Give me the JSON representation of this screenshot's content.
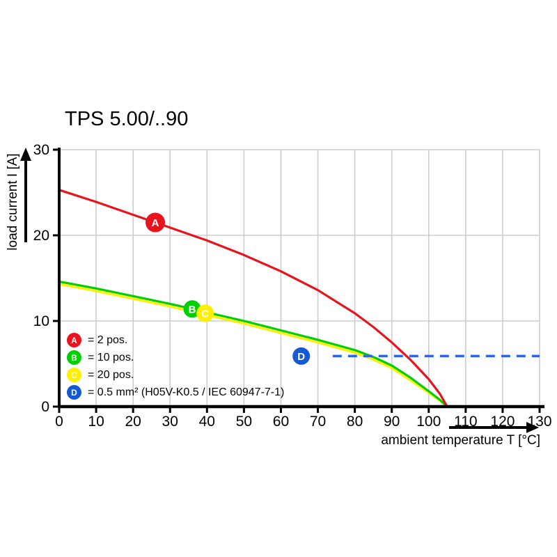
{
  "page": {
    "background": "#ffffff"
  },
  "chart_data": {
    "type": "line",
    "title": "TPS 5.00/..90",
    "xlabel": "ambient temperature T [°C]",
    "ylabel": "load current I [A]",
    "xlim": [
      0,
      130
    ],
    "ylim": [
      0,
      30
    ],
    "x_ticks": [
      0,
      10,
      20,
      30,
      40,
      50,
      60,
      70,
      80,
      90,
      100,
      110,
      120,
      130
    ],
    "y_ticks": [
      0,
      10,
      20,
      30
    ],
    "grid": true,
    "grid_color": "#cdcdcd",
    "axis_color": "#000000",
    "legend_position": "bottom-left inside plot",
    "series": [
      {
        "name": "C = 20 pos.",
        "color": "#ffef00",
        "style": "solid",
        "x": [
          0,
          10,
          20,
          30,
          40,
          50,
          60,
          70,
          80,
          85,
          90,
          95,
          100,
          103,
          105
        ],
        "y": [
          14.3,
          13.5,
          12.6,
          11.7,
          10.7,
          9.7,
          8.6,
          7.5,
          6.3,
          5.5,
          4.5,
          3.1,
          1.6,
          0.7,
          0
        ]
      },
      {
        "name": "B = 10 pos.",
        "color": "#00cf00",
        "style": "solid",
        "x": [
          0,
          10,
          20,
          30,
          40,
          50,
          60,
          70,
          80,
          85,
          90,
          95,
          100,
          103,
          105
        ],
        "y": [
          14.6,
          13.8,
          12.9,
          12.0,
          11.0,
          10.0,
          8.9,
          7.8,
          6.6,
          5.8,
          4.8,
          3.4,
          1.8,
          0.8,
          0
        ]
      },
      {
        "name": "A = 2 pos.",
        "color": "#e8131d",
        "style": "solid",
        "x": [
          0,
          10,
          20,
          30,
          40,
          50,
          60,
          70,
          80,
          85,
          90,
          95,
          100,
          103,
          105
        ],
        "y": [
          25.3,
          23.9,
          22.4,
          20.9,
          19.4,
          17.7,
          15.8,
          13.6,
          10.9,
          9.3,
          7.5,
          5.5,
          3.2,
          1.5,
          0
        ]
      },
      {
        "name": "D = 0.5 mm² limit",
        "color": "#2e64e5",
        "style": "dashed",
        "x": [
          74,
          130
        ],
        "y": [
          5.9,
          5.9
        ]
      }
    ],
    "markers": [
      {
        "letter": "B",
        "color": "#00cf00",
        "text_color": "#ffffff",
        "t": 36,
        "i": 11.4
      },
      {
        "letter": "C",
        "color": "#ffef00",
        "text_color": "#ffffff",
        "t": 39.5,
        "i": 10.9
      },
      {
        "letter": "A",
        "color": "#e8131d",
        "text_color": "#ffffff",
        "t": 26,
        "i": 21.5
      },
      {
        "letter": "D",
        "color": "#1659d6",
        "text_color": "#ffffff",
        "t": 65.5,
        "i": 5.9
      }
    ],
    "legend": [
      {
        "letter": "A",
        "color": "#e8131d",
        "label": "= 2 pos."
      },
      {
        "letter": "B",
        "color": "#00cf00",
        "label": "= 10 pos."
      },
      {
        "letter": "C",
        "color": "#ffef00",
        "label": "= 20 pos."
      },
      {
        "letter": "D",
        "color": "#1659d6",
        "label": "= 0.5 mm² (H05V-K0.5 / IEC 60947-7-1)"
      }
    ]
  }
}
